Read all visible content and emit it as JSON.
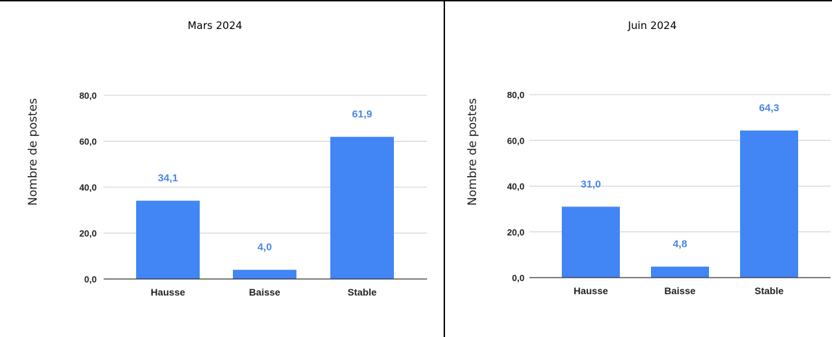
{
  "colors": {
    "bar": "#4285f4",
    "data_label": "#4a86e8",
    "grid": "#cccccc",
    "axis": "#333333"
  },
  "chart_data": [
    {
      "type": "bar",
      "title": "Mars 2024",
      "ylabel": "Nombre de postes",
      "xlabel": "",
      "categories": [
        "Hausse",
        "Baisse",
        "Stable"
      ],
      "values": [
        34.1,
        4.0,
        61.9
      ],
      "data_labels": [
        "34,1",
        "4,0",
        "61,9"
      ],
      "yticks": [
        "0,0",
        "20,0",
        "40,0",
        "60,0",
        "80,0"
      ],
      "ylim": [
        0,
        80
      ],
      "grid": true,
      "legend": "none"
    },
    {
      "type": "bar",
      "title": "Juin 2024",
      "ylabel": "Nombre de postes",
      "xlabel": "",
      "categories": [
        "Hausse",
        "Baisse",
        "Stable"
      ],
      "values": [
        31.0,
        4.8,
        64.3
      ],
      "data_labels": [
        "31,0",
        "4,8",
        "64,3"
      ],
      "yticks": [
        "0,0",
        "20,0",
        "40,0",
        "60,0",
        "80,0"
      ],
      "ylim": [
        0,
        80
      ],
      "grid": true,
      "legend": "none"
    }
  ]
}
